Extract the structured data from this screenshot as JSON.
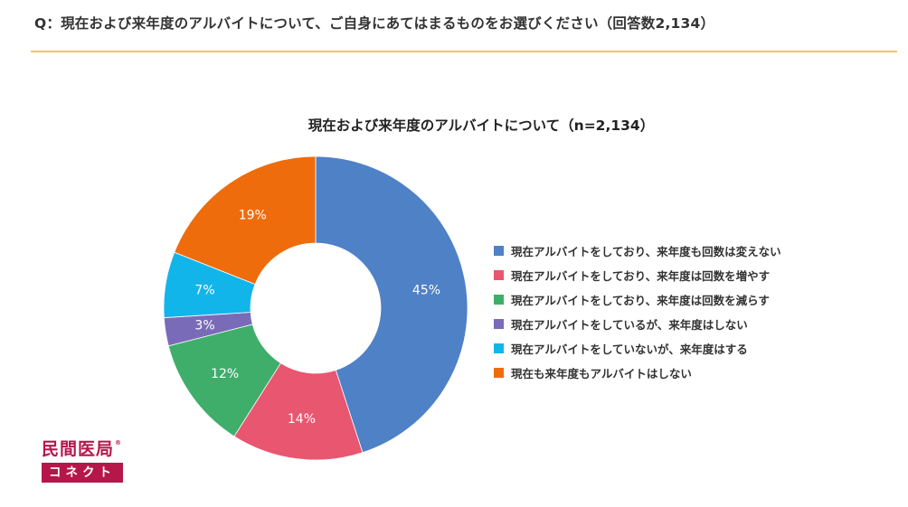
{
  "question": "Q：現在および来年度のアルバイトについて、ご自身にあてはまるものをお選びください（回答数2,134）",
  "colors": {
    "accent_rule": "#f2c94c",
    "brand": "#b5174b"
  },
  "logo": {
    "top_text": "民間医局",
    "registered_mark": "®",
    "bottom_text": "コネクト"
  },
  "chart_data": {
    "type": "pie",
    "style": "donut",
    "title": "現在および来年度のアルバイトについて（n=2,134）",
    "legend_placement": "right",
    "slices": [
      {
        "label": "現在アルバイトをしており、来年度も回数は変えない",
        "value": 45,
        "value_label": "45%",
        "color": "#4f81c7"
      },
      {
        "label": "現在アルバイトをしており、来年度は回数を増やす",
        "value": 14,
        "value_label": "14%",
        "color": "#e8566f"
      },
      {
        "label": "現在アルバイトをしており、来年度は回数を減らす",
        "value": 12,
        "value_label": "12%",
        "color": "#3fae6b"
      },
      {
        "label": "現在アルバイトをしているが、来年度はしない",
        "value": 3,
        "value_label": "3%",
        "color": "#7a6bb8"
      },
      {
        "label": "現在アルバイトをしていないが、来年度はする",
        "value": 7,
        "value_label": "7%",
        "color": "#12b5ea"
      },
      {
        "label": "現在も来年度もアルバイトはしない",
        "value": 19,
        "value_label": "19%",
        "color": "#ee6c0c"
      }
    ]
  }
}
